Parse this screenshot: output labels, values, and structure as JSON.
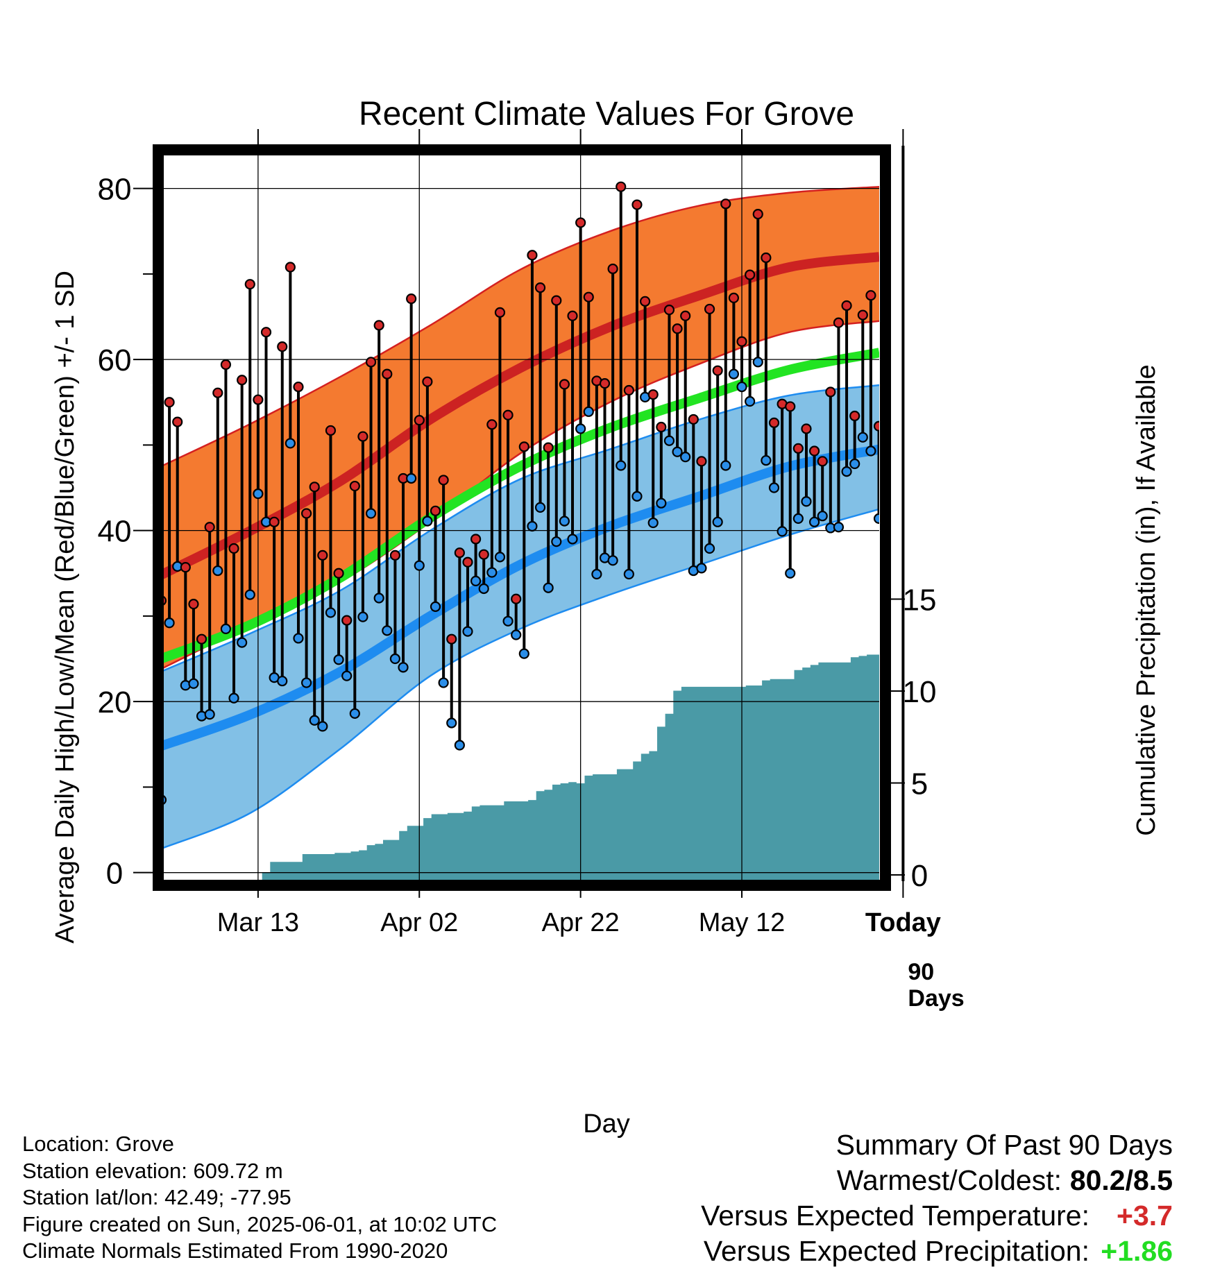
{
  "chart_data": {
    "type": "line",
    "title": "Recent Climate Values For Grove",
    "xlabel": "Day",
    "ylabel": "Average Daily High/Low/Mean (Red/Blue/Green) +/- 1 SD",
    "y2label": "Cumulative Precipitation (in), If Available",
    "x_ticks": [
      "Mar 13",
      "Apr 02",
      "Apr 22",
      "May 12",
      "Today"
    ],
    "y_ticks": [
      "0",
      "20",
      "40",
      "60",
      "80"
    ],
    "y2_ticks": [
      "0",
      "5",
      "10",
      "15"
    ],
    "ylim": [
      -1,
      85
    ],
    "y2lim": [
      0,
      40
    ],
    "grid": true,
    "today_label": "90 Days",
    "colors": {
      "normal_high_band": "#f47a30",
      "normal_high_line": "#cc2222",
      "normal_low_band": "#82c0e6",
      "normal_low_line": "#1e8cf0",
      "normal_mean_line": "#22e422",
      "high_marker": "#d42a2a",
      "low_marker": "#2b8ee8",
      "precip_fill": "#4a9aa6",
      "band_edge_high": "#d42020",
      "band_edge_low": "#1e8cf0"
    },
    "normal_high": {
      "mean": [
        34.8,
        40.0,
        45.8,
        53.0,
        59.0,
        63.8,
        67.5,
        70.8,
        72.0
      ],
      "minus_sd": [
        23.8,
        29.0,
        34.0,
        41.0,
        49.0,
        55.0,
        59.5,
        63.2,
        64.5
      ],
      "plus_sd": [
        47.5,
        52.5,
        58.0,
        64.0,
        70.5,
        75.0,
        78.0,
        79.5,
        80.2
      ]
    },
    "normal_low": {
      "mean": [
        14.8,
        18.5,
        23.5,
        30.0,
        36.0,
        40.5,
        44.0,
        47.5,
        49.5
      ],
      "minus_sd": [
        2.8,
        7.0,
        14.5,
        23.0,
        28.5,
        32.5,
        36.0,
        39.5,
        42.5
      ],
      "plus_sd": [
        23.5,
        28.0,
        33.0,
        40.0,
        46.0,
        49.5,
        53.0,
        55.8,
        57.0
      ]
    },
    "normal_mean": [
      25.0,
      29.0,
      34.5,
      41.5,
      47.5,
      52.0,
      55.5,
      58.8,
      60.8
    ],
    "daily": [
      {
        "high": 31.8,
        "low": 8.5
      },
      {
        "high": 55.0,
        "low": 29.2
      },
      {
        "high": 52.7,
        "low": 35.8
      },
      {
        "high": 35.7,
        "low": 21.9
      },
      {
        "high": 31.4,
        "low": 22.1
      },
      {
        "high": 27.3,
        "low": 18.3
      },
      {
        "high": 40.4,
        "low": 18.5
      },
      {
        "high": 56.1,
        "low": 35.3
      },
      {
        "high": 59.4,
        "low": 28.5
      },
      {
        "high": 37.9,
        "low": 20.4
      },
      {
        "high": 57.6,
        "low": 26.9
      },
      {
        "high": 68.8,
        "low": 32.5
      },
      {
        "high": 55.3,
        "low": 44.3
      },
      {
        "high": 63.2,
        "low": 41.0
      },
      {
        "high": 41.0,
        "low": 22.8
      },
      {
        "high": 61.5,
        "low": 22.4
      },
      {
        "high": 70.8,
        "low": 50.2
      },
      {
        "high": 56.8,
        "low": 27.4
      },
      {
        "high": 42.0,
        "low": 22.2
      },
      {
        "high": 45.1,
        "low": 17.8
      },
      {
        "high": 37.1,
        "low": 17.1
      },
      {
        "high": 51.7,
        "low": 30.4
      },
      {
        "high": 35.0,
        "low": 24.9
      },
      {
        "high": 29.5,
        "low": 23.0
      },
      {
        "high": 45.2,
        "low": 18.6
      },
      {
        "high": 51.0,
        "low": 29.9
      },
      {
        "high": 59.7,
        "low": 42.0
      },
      {
        "high": 64.0,
        "low": 32.1
      },
      {
        "high": 58.3,
        "low": 28.3
      },
      {
        "high": 37.1,
        "low": 25.0
      },
      {
        "high": 46.1,
        "low": 24.0
      },
      {
        "high": 67.1,
        "low": 46.1
      },
      {
        "high": 52.9,
        "low": 35.9
      },
      {
        "high": 57.4,
        "low": 41.1
      },
      {
        "high": 42.3,
        "low": 31.1
      },
      {
        "high": 45.9,
        "low": 22.2
      },
      {
        "high": 27.3,
        "low": 17.5
      },
      {
        "high": 37.4,
        "low": 14.9
      },
      {
        "high": 36.3,
        "low": 28.2
      },
      {
        "high": 39.0,
        "low": 34.1
      },
      {
        "high": 37.2,
        "low": 33.2
      },
      {
        "high": 52.4,
        "low": 35.1
      },
      {
        "high": 65.5,
        "low": 36.9
      },
      {
        "high": 53.5,
        "low": 29.4
      },
      {
        "high": 32.0,
        "low": 27.8
      },
      {
        "high": 49.8,
        "low": 25.6
      },
      {
        "high": 72.2,
        "low": 40.5
      },
      {
        "high": 68.4,
        "low": 42.7
      },
      {
        "high": 49.7,
        "low": 33.3
      },
      {
        "high": 66.9,
        "low": 38.7
      },
      {
        "high": 57.1,
        "low": 41.1
      },
      {
        "high": 65.1,
        "low": 39.0
      },
      {
        "high": 76.0,
        "low": 51.9
      },
      {
        "high": 67.3,
        "low": 53.9
      },
      {
        "high": 57.5,
        "low": 34.9
      },
      {
        "high": 57.2,
        "low": 36.8
      },
      {
        "high": 70.6,
        "low": 36.5
      },
      {
        "high": 80.2,
        "low": 47.6
      },
      {
        "high": 56.4,
        "low": 34.9
      },
      {
        "high": 78.1,
        "low": 44.0
      },
      {
        "high": 66.8,
        "low": 55.6
      },
      {
        "high": 55.9,
        "low": 40.9
      },
      {
        "high": 52.1,
        "low": 43.2
      },
      {
        "high": 65.8,
        "low": 50.5
      },
      {
        "high": 63.6,
        "low": 49.2
      },
      {
        "high": 65.1,
        "low": 48.6
      },
      {
        "high": 53.0,
        "low": 35.3
      },
      {
        "high": 48.1,
        "low": 35.6
      },
      {
        "high": 65.9,
        "low": 37.9
      },
      {
        "high": 58.7,
        "low": 41.0
      },
      {
        "high": 78.2,
        "low": 47.6
      },
      {
        "high": 67.2,
        "low": 58.3
      },
      {
        "high": 62.1,
        "low": 56.8
      },
      {
        "high": 69.9,
        "low": 55.1
      },
      {
        "high": 77.0,
        "low": 59.7
      },
      {
        "high": 71.9,
        "low": 48.2
      },
      {
        "high": 52.6,
        "low": 45.0
      },
      {
        "high": 54.8,
        "low": 39.9
      },
      {
        "high": 54.5,
        "low": 35.0
      },
      {
        "high": 49.6,
        "low": 41.4
      },
      {
        "high": 51.9,
        "low": 43.4
      },
      {
        "high": 49.3,
        "low": 41.0
      },
      {
        "high": 48.1,
        "low": 41.7
      },
      {
        "high": 56.2,
        "low": 40.3
      },
      {
        "high": 64.3,
        "low": 40.4
      },
      {
        "high": 66.3,
        "low": 46.9
      },
      {
        "high": 53.4,
        "low": 47.8
      },
      {
        "high": 65.2,
        "low": 50.9
      },
      {
        "high": 67.5,
        "low": 49.3
      },
      {
        "high": 52.2,
        "low": 41.4
      }
    ],
    "cumulative_precip_in": [
      0.0,
      0.0,
      0.0,
      0.0,
      0.0,
      0.0,
      0.0,
      0.0,
      0.0,
      0.0,
      0.0,
      0.0,
      0.0,
      0.49,
      1.05,
      1.05,
      1.05,
      1.05,
      1.47,
      1.47,
      1.47,
      1.47,
      1.54,
      1.54,
      1.61,
      1.68,
      1.96,
      2.03,
      2.24,
      2.24,
      2.73,
      3.01,
      3.01,
      3.43,
      3.64,
      3.64,
      3.71,
      3.71,
      3.78,
      4.06,
      4.13,
      4.13,
      4.13,
      4.34,
      4.34,
      4.34,
      4.41,
      4.9,
      4.97,
      5.25,
      5.32,
      5.39,
      5.32,
      5.74,
      5.81,
      5.81,
      5.81,
      6.09,
      6.09,
      6.51,
      6.93,
      7.07,
      8.4,
      9.1,
      10.36,
      10.57,
      10.57,
      10.57,
      10.57,
      10.57,
      10.57,
      10.57,
      10.57,
      10.64,
      10.64,
      10.92,
      10.99,
      10.99,
      10.99,
      11.48,
      11.62,
      11.76,
      11.9,
      11.9,
      11.9,
      11.9,
      12.18,
      12.25,
      12.32,
      12.32
    ],
    "summary": {
      "heading": "Summary Of Past 90 Days",
      "warmest_coldest_label": "Warmest/Coldest:",
      "warmest_coldest_value": "80.2/8.5",
      "vs_temp_label": "Versus Expected Temperature:",
      "vs_temp_value": "+3.7",
      "vs_temp_color": "#d42a2a",
      "vs_precip_label": "Versus Expected Precipitation:",
      "vs_precip_value": "+1.86",
      "vs_precip_color": "#22dd22"
    }
  },
  "footer": {
    "location": "Location: Grove",
    "elevation": "Station elevation: 609.72 m",
    "latlon": "Station lat/lon: 42.49; -77.95",
    "created": "Figure created on Sun, 2025-06-01, at 10:02 UTC",
    "normals": "Climate Normals Estimated From 1990-2020"
  }
}
